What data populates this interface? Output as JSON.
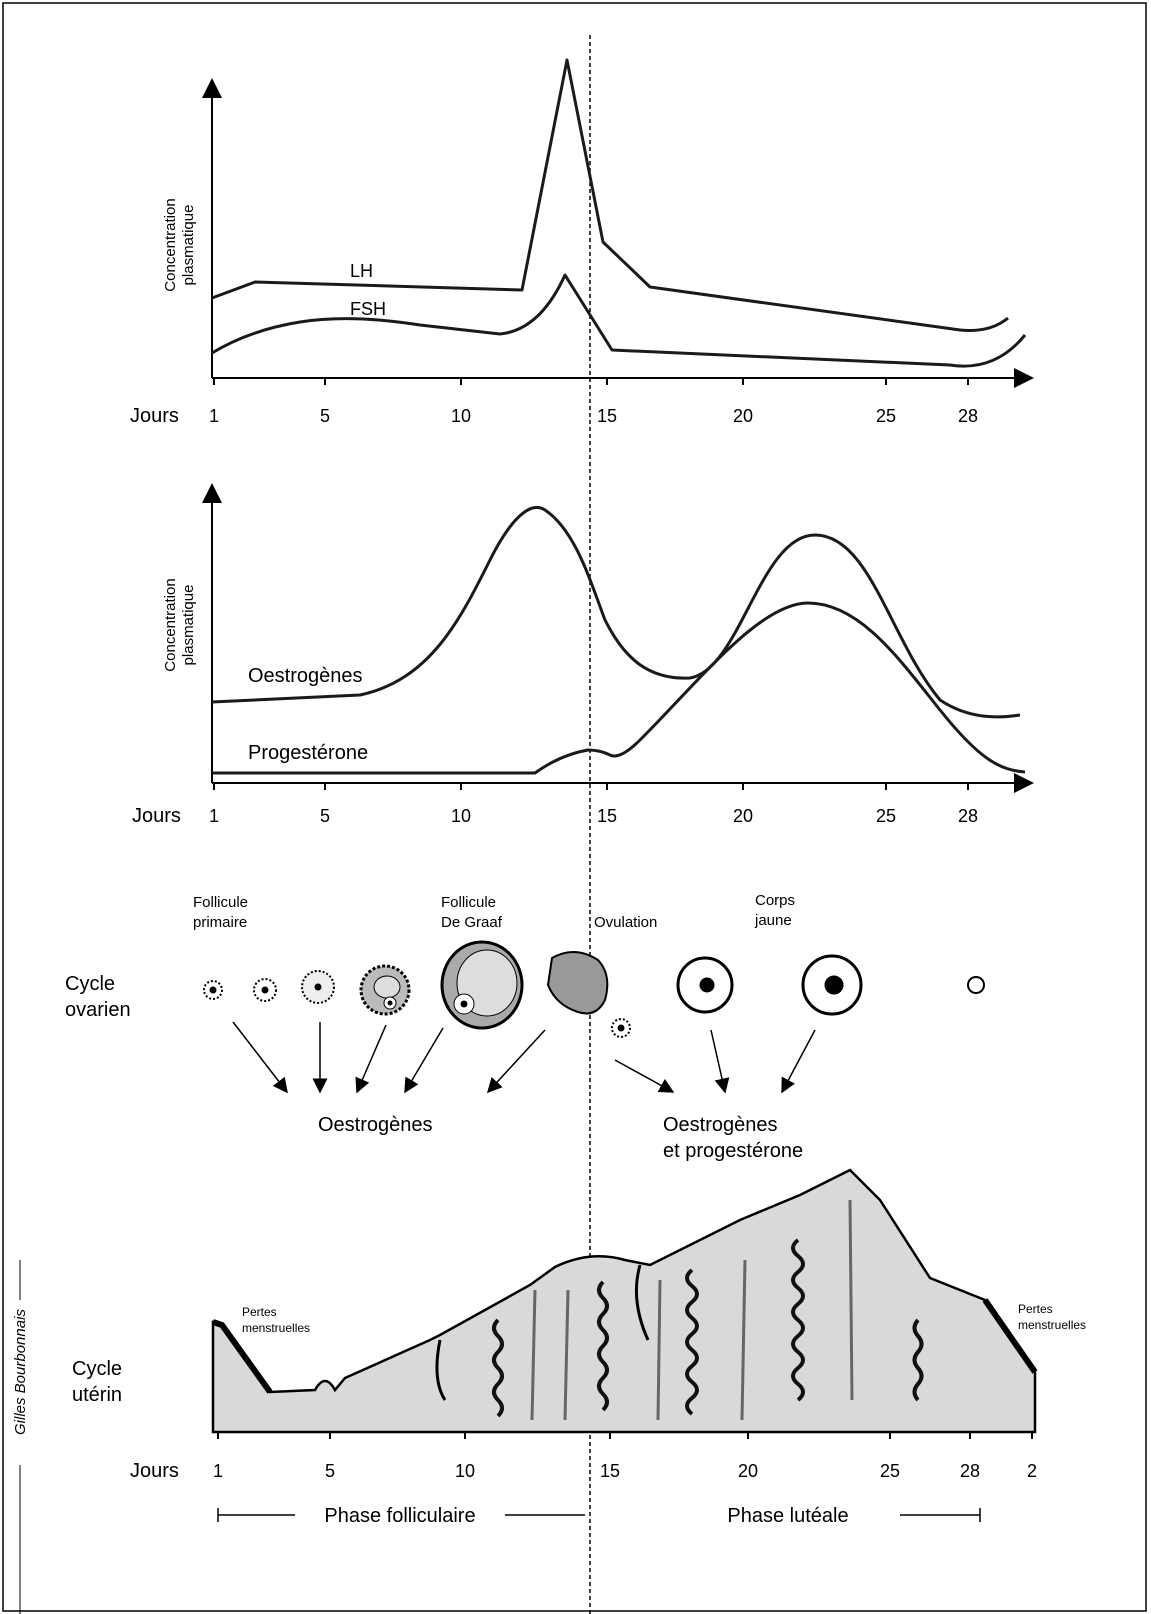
{
  "hormones_chart": {
    "y_label": [
      "Concentration",
      "plasmatique"
    ],
    "lh_label": "LH",
    "fsh_label": "FSH",
    "x_label": "Jours",
    "x_ticks": [
      "1",
      "5",
      "10",
      "15",
      "20",
      "25",
      "28"
    ]
  },
  "ovarian_hormones_chart": {
    "y_label": [
      "Concentration",
      "plasmatique"
    ],
    "oestrogen_label": "Oestrogènes",
    "progesterone_label": "Progestérone",
    "x_label": "Jours",
    "x_ticks": [
      "1",
      "5",
      "10",
      "15",
      "20",
      "25",
      "28"
    ]
  },
  "ovarian_cycle": {
    "title": [
      "Cycle",
      "ovarien"
    ],
    "stages": {
      "primary_follicle": [
        "Follicule",
        "primaire"
      ],
      "graaf_follicle": [
        "Follicule",
        "De Graaf"
      ],
      "ovulation": [
        "Ovulation"
      ],
      "corpus_luteum": [
        "Corps",
        "jaune"
      ]
    },
    "output_left": [
      "Oestrogènes"
    ],
    "output_right": [
      "Oestrogènes",
      "et progestérone"
    ]
  },
  "uterine_cycle": {
    "title": [
      "Cycle",
      "utérin"
    ],
    "menstruation_left": [
      "Pertes",
      "menstruelles"
    ],
    "menstruation_right": [
      "Pertes",
      "menstruelles"
    ],
    "x_label": "Jours",
    "x_ticks": [
      "1",
      "5",
      "10",
      "15",
      "20",
      "25",
      "28",
      "2"
    ],
    "phase_follicular": "Phase folliculaire",
    "phase_luteal": "Phase lutéale"
  },
  "credit": "Gilles Bourbonnais"
}
